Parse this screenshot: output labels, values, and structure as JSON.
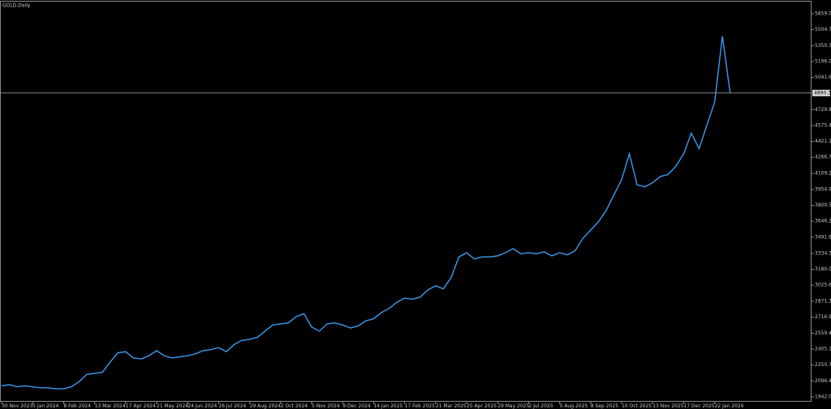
{
  "chart_data": {
    "type": "line",
    "title": "GOLD,Daily",
    "categories": [
      "30 Nov 2023",
      null,
      null,
      null,
      "5 Jan 2024",
      null,
      null,
      null,
      "8 Feb 2024",
      null,
      null,
      null,
      "13 Mar 2024",
      null,
      null,
      null,
      "17 Apr 2024",
      null,
      null,
      null,
      "21 May 2024",
      null,
      null,
      null,
      "24 Jun 2024",
      null,
      null,
      null,
      "26 Jul 2024",
      null,
      null,
      null,
      "29 Aug 2024",
      null,
      null,
      null,
      "2 Oct 2024",
      null,
      null,
      null,
      "5 Nov 2024",
      null,
      null,
      null,
      "9 Dec 2024",
      null,
      null,
      null,
      "14 Jan 2025",
      null,
      null,
      null,
      "17 Feb 2025",
      null,
      null,
      null,
      "21 Mar 2025",
      null,
      null,
      null,
      "25 Apr 2025",
      null,
      null,
      null,
      "29 May 2025",
      null,
      null,
      null,
      "2 Jul 2025",
      null,
      null,
      null,
      "5 Aug 2025",
      null,
      null,
      null,
      "8 Sep 2025",
      null,
      null,
      null,
      "10 Oct 2025",
      null,
      null,
      null,
      "13 Nov 2025",
      null,
      null,
      null,
      "17 Dec 2025",
      null,
      null,
      null,
      "22 Jan 2026",
      null,
      null
    ],
    "series": [
      {
        "name": "GOLD",
        "color": "#3a9cf0",
        "values": [
          2050,
          2060,
          2040,
          2050,
          2040,
          2030,
          2030,
          2020,
          2020,
          2040,
          2090,
          2160,
          2170,
          2180,
          2280,
          2370,
          2380,
          2320,
          2310,
          2340,
          2390,
          2340,
          2320,
          2330,
          2340,
          2360,
          2390,
          2400,
          2420,
          2380,
          2450,
          2490,
          2500,
          2520,
          2580,
          2640,
          2650,
          2660,
          2720,
          2750,
          2620,
          2580,
          2650,
          2660,
          2640,
          2610,
          2630,
          2680,
          2700,
          2760,
          2800,
          2860,
          2900,
          2890,
          2910,
          2980,
          3020,
          2990,
          3100,
          3300,
          3340,
          3280,
          3300,
          3300,
          3310,
          3340,
          3380,
          3330,
          3340,
          3330,
          3350,
          3310,
          3340,
          3320,
          3360,
          3480,
          3560,
          3640,
          3750,
          3900,
          4050,
          4300,
          4000,
          3980,
          4020,
          4080,
          4100,
          4180,
          4300,
          4500,
          4350,
          4580,
          4800,
          5440,
          4890
        ]
      }
    ],
    "current_price": 4890.34,
    "ylim": [
      1895,
      5777
    ],
    "yticks": [
      5659.05,
      {
        "value": 5504.7,
        "label": "5504.70"
      },
      5350.35,
      {
        "value": 5196,
        "label": "5196.00"
      },
      5041.65,
      {
        "value": 4729.8,
        "label": "4729.80"
      },
      4575.45,
      {
        "value": 4421.1,
        "label": "4421.10"
      },
      4266.75,
      4109.25,
      {
        "value": 3954.9,
        "label": "3954.90"
      },
      3800.55,
      {
        "value": 3646.2,
        "label": "3646.20"
      },
      3491.85,
      3334.35,
      {
        "value": 3180,
        "label": "3180.00"
      },
      3025.65,
      {
        "value": 2871.3,
        "label": "2871.30"
      },
      2716.95,
      2559.45,
      {
        "value": 2405.1,
        "label": "2405.10"
      },
      2250.75,
      {
        "value": 2096.4,
        "label": "2096.40"
      },
      1942.05
    ],
    "grid": false
  }
}
